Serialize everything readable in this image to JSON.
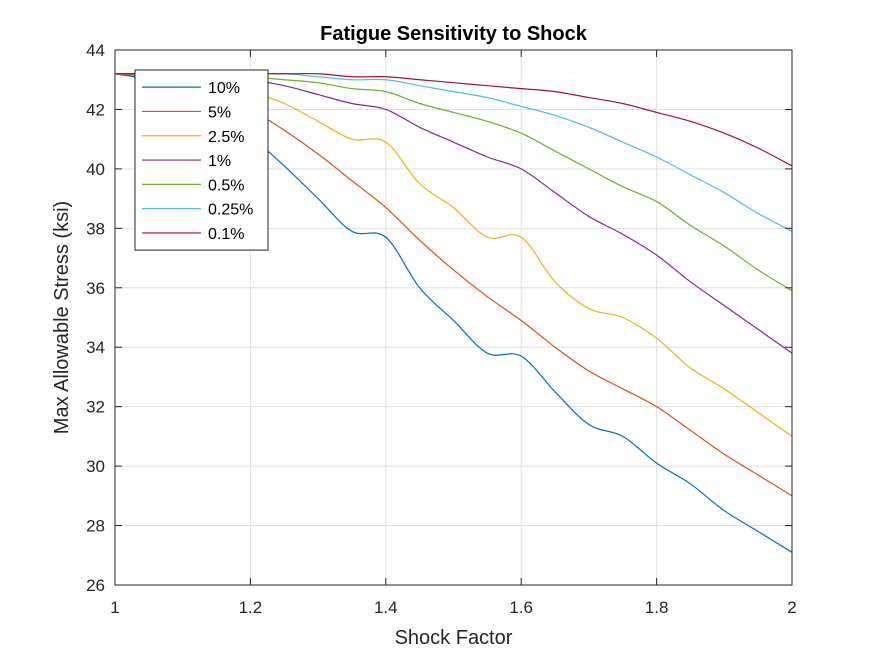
{
  "chart_data": {
    "type": "line",
    "title": "Fatigue Sensitivity to Shock",
    "xlabel": "Shock Factor",
    "ylabel": "Max Allowable Stress (ksi)",
    "xlim": [
      1,
      2
    ],
    "ylim": [
      26,
      44
    ],
    "xticks": [
      1,
      1.2,
      1.4,
      1.6,
      1.8,
      2
    ],
    "yticks": [
      26,
      28,
      30,
      32,
      34,
      36,
      38,
      40,
      42,
      44
    ],
    "xtick_labels": [
      "1",
      "1.2",
      "1.4",
      "1.6",
      "1.8",
      "2"
    ],
    "ytick_labels": [
      "26",
      "28",
      "30",
      "32",
      "34",
      "36",
      "38",
      "40",
      "42",
      "44"
    ],
    "grid": true,
    "legend_position": "top-left",
    "x": [
      1.0,
      1.05,
      1.1,
      1.15,
      1.2,
      1.25,
      1.3,
      1.35,
      1.4,
      1.45,
      1.5,
      1.55,
      1.6,
      1.65,
      1.7,
      1.75,
      1.8,
      1.85,
      1.9,
      1.95,
      2.0
    ],
    "series": [
      {
        "name": "10%",
        "color": "#0072BD",
        "values": [
          43.2,
          43.0,
          42.6,
          41.9,
          41.1,
          40.1,
          39.0,
          37.9,
          37.7,
          36.0,
          34.9,
          33.8,
          33.7,
          32.5,
          31.4,
          31.0,
          30.1,
          29.4,
          28.5,
          27.8,
          27.1
        ]
      },
      {
        "name": "5%",
        "color": "#D95319",
        "values": [
          43.2,
          43.1,
          42.9,
          42.5,
          42.0,
          41.3,
          40.5,
          39.6,
          38.7,
          37.6,
          36.6,
          35.7,
          34.9,
          34.0,
          33.2,
          32.6,
          32.0,
          31.2,
          30.4,
          29.7,
          29.0
        ]
      },
      {
        "name": "2.5%",
        "color": "#EDB120",
        "values": [
          43.2,
          43.2,
          43.1,
          42.9,
          42.6,
          42.2,
          41.6,
          41.0,
          40.9,
          39.5,
          38.7,
          37.7,
          37.7,
          36.2,
          35.3,
          35.0,
          34.3,
          33.3,
          32.6,
          31.8,
          31.0
        ]
      },
      {
        "name": "1%",
        "color": "#7E2F8E",
        "values": [
          43.2,
          43.2,
          43.2,
          43.1,
          43.0,
          42.8,
          42.5,
          42.2,
          42.0,
          41.4,
          40.9,
          40.4,
          40.0,
          39.2,
          38.4,
          37.8,
          37.1,
          36.2,
          35.4,
          34.6,
          33.8
        ]
      },
      {
        "name": "0.5%",
        "color": "#77AC30",
        "values": [
          43.2,
          43.2,
          43.2,
          43.2,
          43.1,
          43.0,
          42.9,
          42.7,
          42.6,
          42.2,
          41.9,
          41.6,
          41.2,
          40.6,
          40.0,
          39.4,
          38.9,
          38.1,
          37.4,
          36.6,
          35.9
        ]
      },
      {
        "name": "0.25%",
        "color": "#4DBEEE",
        "values": [
          43.2,
          43.2,
          43.2,
          43.2,
          43.2,
          43.2,
          43.1,
          43.0,
          43.0,
          42.8,
          42.6,
          42.4,
          42.1,
          41.8,
          41.4,
          40.9,
          40.4,
          39.8,
          39.2,
          38.5,
          37.9
        ]
      },
      {
        "name": "0.1%",
        "color": "#A2142F",
        "values": [
          43.2,
          43.2,
          43.2,
          43.2,
          43.2,
          43.2,
          43.2,
          43.1,
          43.1,
          43.0,
          42.9,
          42.8,
          42.7,
          42.6,
          42.4,
          42.2,
          41.9,
          41.6,
          41.2,
          40.7,
          40.1
        ]
      }
    ]
  }
}
